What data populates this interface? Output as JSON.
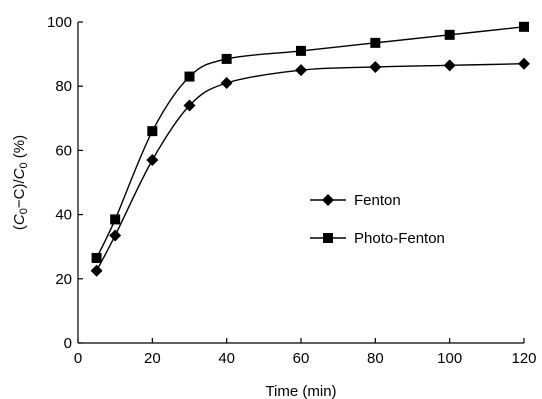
{
  "chart_data": {
    "type": "line",
    "title": "",
    "xlabel": "Time (min)",
    "ylabel": {
      "open": "(",
      "c0": "C",
      "sub0": "0",
      "minus": "−C)/",
      "c0b": "C",
      "sub0b": "0",
      "unit": " (%)"
    },
    "xlim": [
      0,
      120
    ],
    "ylim": [
      0,
      100
    ],
    "xticks": [
      0,
      20,
      40,
      60,
      80,
      100,
      120
    ],
    "yticks": [
      0,
      20,
      40,
      60,
      80,
      100
    ],
    "grid": false,
    "legend_position": "center-right",
    "series": [
      {
        "name": "Fenton",
        "marker": "diamond",
        "color": "#000000",
        "x": [
          5,
          10,
          20,
          30,
          40,
          60,
          80,
          100,
          120
        ],
        "y": [
          22.5,
          33.5,
          57,
          74,
          81,
          85,
          86,
          86.5,
          87
        ]
      },
      {
        "name": "Photo-Fenton",
        "marker": "square",
        "color": "#000000",
        "x": [
          5,
          10,
          20,
          30,
          40,
          60,
          80,
          100,
          120
        ],
        "y": [
          26.5,
          38.5,
          66,
          83,
          88.5,
          91,
          93.5,
          96,
          98.5
        ]
      }
    ]
  }
}
